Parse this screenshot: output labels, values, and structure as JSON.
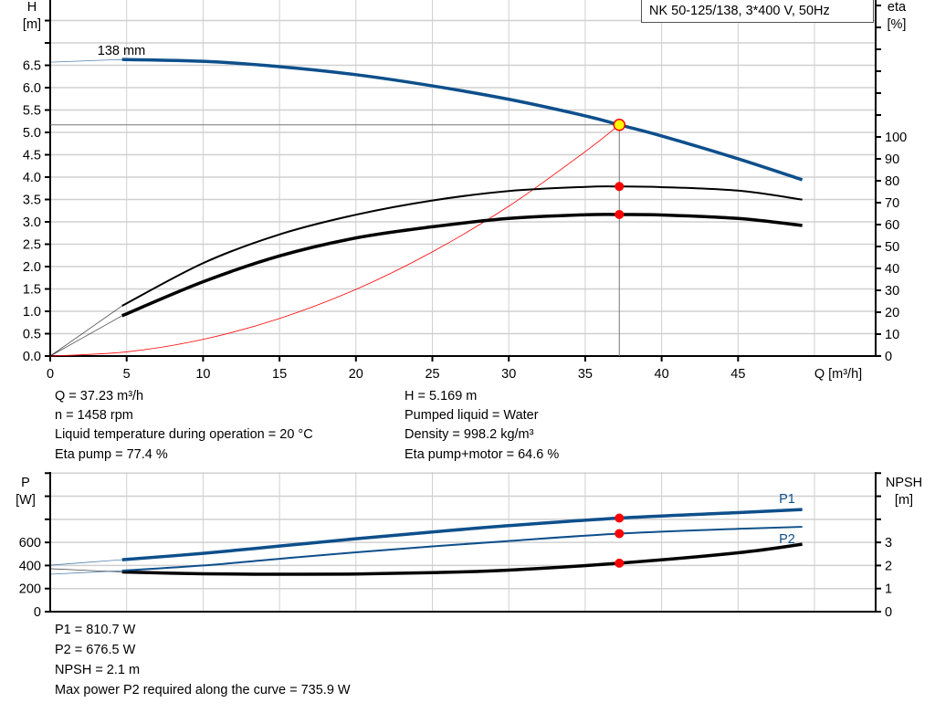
{
  "title": "NK 50-125/138, 3*400 V, 50Hz",
  "colors": {
    "head_curve": "#0d4f8b",
    "eta_curves": "#000000",
    "system_curve": "#ff0000",
    "duty_point": "#ff0000",
    "duty_point_fill": "#ffff00",
    "power_curves": "#0d4f8b",
    "npsh_curve": "#000000",
    "grid": "#d0d0d0"
  },
  "chart_data": [
    {
      "type": "line",
      "xlabel": "Q [m³/h]",
      "ylabel_left_lines": [
        "H",
        "[m]"
      ],
      "ylabel_right_lines": [
        "eta",
        "[%]"
      ],
      "xlim": [
        0,
        54
      ],
      "ylim_left": [
        0,
        7.96
      ],
      "ylim_right": [
        0,
        162.5
      ],
      "grid": true,
      "x_ticks": [
        "0",
        "5",
        "10",
        "15",
        "20",
        "25",
        "30",
        "35",
        "40",
        "45"
      ],
      "y_left_ticks": [
        "0.0",
        "0.5",
        "1.0",
        "1.5",
        "2.0",
        "2.5",
        "3.0",
        "3.5",
        "4.0",
        "4.5",
        "5.0",
        "5.5",
        "6.0",
        "6.5"
      ],
      "y_right_ticks": [
        "0",
        "10",
        "20",
        "30",
        "40",
        "50",
        "60",
        "70",
        "80",
        "90",
        "100"
      ],
      "annotation": "138 mm",
      "series": [
        {
          "key": "head",
          "axis": "left",
          "x": [
            0,
            4.7,
            10,
            15,
            20,
            25,
            30,
            35,
            37.23,
            40,
            45,
            49.2
          ],
          "y": [
            6.57,
            6.63,
            6.59,
            6.47,
            6.29,
            6.04,
            5.74,
            5.37,
            5.169,
            4.92,
            4.41,
            3.94
          ],
          "extrapolated_to": 4.7
        },
        {
          "key": "eta_pump",
          "axis": "right",
          "x": [
            0,
            4.7,
            10,
            15,
            20,
            25,
            30,
            35,
            37.23,
            40,
            45,
            49.2
          ],
          "y": [
            0,
            22.9,
            42.4,
            55.5,
            64.5,
            71,
            75.3,
            77.2,
            77.4,
            77.1,
            75.5,
            71.4
          ],
          "extrapolated_to": 4.7
        },
        {
          "key": "eta_pump_motor",
          "axis": "right",
          "x": [
            0,
            4.7,
            10,
            15,
            20,
            25,
            30,
            35,
            37.23,
            40,
            45,
            49.2
          ],
          "y": [
            0,
            18.4,
            33.9,
            45.7,
            53.9,
            59,
            62.8,
            64.5,
            64.6,
            64.4,
            62.8,
            59.6
          ],
          "extrapolated_to": 4.7
        },
        {
          "key": "system",
          "axis": "left",
          "x": [
            0,
            5,
            10,
            15,
            20,
            25,
            30,
            35,
            37.23
          ],
          "y": [
            0,
            0.093,
            0.373,
            0.839,
            1.49,
            2.33,
            3.35,
            4.57,
            5.169
          ]
        }
      ],
      "duty_point": {
        "Q": 37.23,
        "H": 5.169,
        "eta_pump": 77.4,
        "eta_pump_motor": 64.6
      }
    },
    {
      "type": "line",
      "xlim": [
        0,
        54
      ],
      "ylim_left": [
        0,
        1210
      ],
      "ylim_right": [
        0,
        6.05
      ],
      "grid": true,
      "ylabel_left_lines": [
        "P",
        "[W]"
      ],
      "ylabel_right_lines": [
        "NPSH",
        "[m]"
      ],
      "y_left_ticks": [
        "0",
        "200",
        "400",
        "600"
      ],
      "y_right_ticks": [
        "0",
        "1",
        "2",
        "3"
      ],
      "series": [
        {
          "key": "P1",
          "name": "P1",
          "axis": "left",
          "x": [
            0,
            4.7,
            10,
            15,
            20,
            25,
            30,
            37.23,
            45,
            49.2
          ],
          "y": [
            403,
            450,
            505,
            568,
            632,
            690,
            745,
            811,
            858,
            885
          ],
          "extrapolated_to": 4.7
        },
        {
          "key": "P2",
          "name": "P2",
          "axis": "left",
          "x": [
            0,
            4.7,
            10,
            15,
            20,
            25,
            30,
            37.23,
            45,
            49.2
          ],
          "y": [
            324,
            355,
            400,
            458,
            514,
            565,
            612,
            676.5,
            718,
            735
          ],
          "extrapolated_to": 4.7
        },
        {
          "key": "NPSH",
          "axis": "right",
          "x": [
            0,
            4.7,
            10,
            15,
            20,
            25,
            30,
            37.23,
            45,
            49.2
          ],
          "y": [
            1.86,
            1.72,
            1.64,
            1.62,
            1.63,
            1.69,
            1.8,
            2.1,
            2.55,
            2.92
          ],
          "extrapolated_to": 4.7
        }
      ],
      "duty_point": {
        "Q": 37.23,
        "P1": 810.7,
        "P2": 676.5,
        "NPSH": 2.1
      }
    }
  ],
  "info": {
    "left": [
      "Q = 37.23 m³/h",
      "n = 1458 rpm",
      "Liquid temperature during operation = 20 °C",
      "Eta pump = 77.4 %"
    ],
    "right": [
      "H = 5.169 m",
      "Pumped liquid = Water",
      "Density = 998.2 kg/m³",
      "Eta pump+motor = 64.6 %"
    ],
    "power": [
      "P1 = 810.7 W",
      "P2 = 676.5 W",
      "NPSH = 2.1 m",
      "Max power P2 required along the curve = 735.9 W"
    ]
  }
}
